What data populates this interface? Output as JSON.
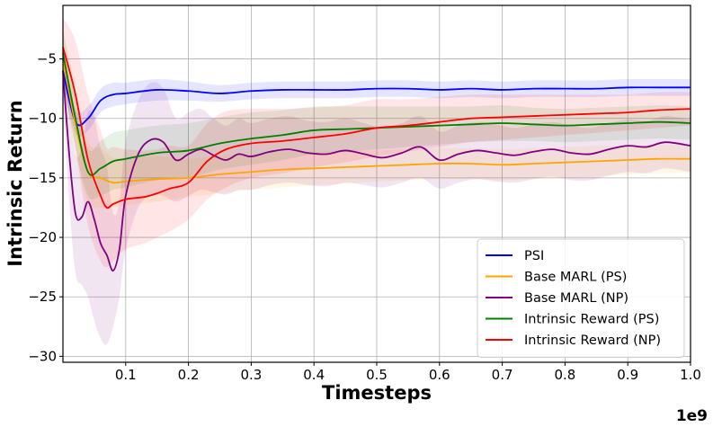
{
  "chart_data": {
    "type": "line",
    "xlabel": "Timesteps",
    "ylabel": "Intrinsic Return",
    "x_offset_label": "1e9",
    "xlim": [
      0.0,
      1.0
    ],
    "ylim": [
      -30.5,
      -0.5
    ],
    "x_ticks": [
      0.1,
      0.2,
      0.3,
      0.4,
      0.5,
      0.6,
      0.7,
      0.8,
      0.9,
      1.0
    ],
    "x_tick_labels": [
      "0.1",
      "0.2",
      "0.3",
      "0.4",
      "0.5",
      "0.6",
      "0.7",
      "0.8",
      "0.9",
      "1.0"
    ],
    "y_ticks": [
      -30,
      -25,
      -20,
      -15,
      -10,
      -5
    ],
    "y_tick_labels": [
      "−30",
      "−25",
      "−20",
      "−15",
      "−10",
      "−5"
    ],
    "grid": true,
    "legend_position": "bottom-right",
    "series": [
      {
        "name": "PSI",
        "color": "#0000ff",
        "x": [
          0.0,
          0.02,
          0.04,
          0.06,
          0.08,
          0.1,
          0.15,
          0.2,
          0.25,
          0.3,
          0.35,
          0.4,
          0.45,
          0.5,
          0.55,
          0.6,
          0.65,
          0.7,
          0.75,
          0.8,
          0.85,
          0.9,
          0.95,
          1.0
        ],
        "y": [
          -6.0,
          -10.3,
          -10.0,
          -8.5,
          -8.0,
          -7.9,
          -7.6,
          -7.7,
          -7.9,
          -7.7,
          -7.6,
          -7.6,
          -7.6,
          -7.5,
          -7.5,
          -7.6,
          -7.5,
          -7.6,
          -7.5,
          -7.5,
          -7.5,
          -7.4,
          -7.4,
          -7.4
        ],
        "lower": [
          -7.0,
          -11.3,
          -11.0,
          -9.5,
          -9.0,
          -8.8,
          -8.5,
          -8.5,
          -8.6,
          -8.4,
          -8.3,
          -8.3,
          -8.3,
          -8.2,
          -8.2,
          -8.3,
          -8.2,
          -8.3,
          -8.2,
          -8.2,
          -8.2,
          -8.1,
          -8.1,
          -8.1
        ],
        "upper": [
          -5.0,
          -9.3,
          -9.0,
          -7.5,
          -7.0,
          -7.0,
          -6.7,
          -6.9,
          -7.2,
          -7.0,
          -6.9,
          -6.9,
          -6.9,
          -6.8,
          -6.8,
          -6.9,
          -6.8,
          -6.9,
          -6.8,
          -6.8,
          -6.8,
          -6.7,
          -6.7,
          -6.7
        ]
      },
      {
        "name": "Base MARL (PS)",
        "color": "#ffa500",
        "x": [
          0.0,
          0.02,
          0.04,
          0.06,
          0.08,
          0.1,
          0.15,
          0.2,
          0.25,
          0.3,
          0.35,
          0.4,
          0.45,
          0.5,
          0.55,
          0.6,
          0.65,
          0.7,
          0.75,
          0.8,
          0.85,
          0.9,
          0.95,
          1.0
        ],
        "y": [
          -5.0,
          -10.5,
          -14.5,
          -15.0,
          -15.4,
          -15.3,
          -15.1,
          -15.0,
          -14.7,
          -14.5,
          -14.3,
          -14.2,
          -14.1,
          -14.0,
          -13.9,
          -13.8,
          -13.8,
          -13.9,
          -13.8,
          -13.7,
          -13.6,
          -13.5,
          -13.4,
          -13.4
        ],
        "lower": [
          -7.0,
          -13.0,
          -17.0,
          -17.5,
          -17.5,
          -17.3,
          -17.0,
          -16.6,
          -16.3,
          -16.0,
          -15.8,
          -15.6,
          -15.5,
          -15.3,
          -15.2,
          -15.1,
          -15.1,
          -15.2,
          -15.1,
          -15.0,
          -14.9,
          -14.7,
          -14.6,
          -14.6
        ],
        "upper": [
          -3.0,
          -8.0,
          -12.0,
          -12.5,
          -13.3,
          -13.3,
          -13.2,
          -13.4,
          -13.1,
          -13.0,
          -12.8,
          -12.8,
          -12.7,
          -12.7,
          -12.6,
          -12.5,
          -12.5,
          -12.6,
          -12.5,
          -12.4,
          -12.3,
          -12.3,
          -12.2,
          -12.2
        ]
      },
      {
        "name": "Base MARL (NP)",
        "color": "#800080",
        "x": [
          0.0,
          0.01,
          0.02,
          0.03,
          0.04,
          0.05,
          0.06,
          0.07,
          0.08,
          0.09,
          0.1,
          0.12,
          0.14,
          0.16,
          0.18,
          0.2,
          0.22,
          0.24,
          0.26,
          0.28,
          0.3,
          0.33,
          0.36,
          0.39,
          0.42,
          0.45,
          0.48,
          0.51,
          0.54,
          0.57,
          0.6,
          0.63,
          0.66,
          0.69,
          0.72,
          0.75,
          0.78,
          0.81,
          0.84,
          0.87,
          0.9,
          0.93,
          0.96,
          1.0
        ],
        "y": [
          -6.0,
          -13.0,
          -18.0,
          -18.3,
          -17.0,
          -18.5,
          -20.5,
          -21.5,
          -22.8,
          -21.0,
          -16.5,
          -13.0,
          -11.8,
          -12.0,
          -13.5,
          -13.0,
          -12.6,
          -13.1,
          -13.5,
          -13.0,
          -13.2,
          -12.8,
          -12.6,
          -12.9,
          -13.0,
          -12.7,
          -13.0,
          -13.3,
          -12.9,
          -12.4,
          -13.5,
          -13.0,
          -12.7,
          -12.9,
          -13.1,
          -12.8,
          -12.6,
          -12.9,
          -13.0,
          -12.6,
          -12.3,
          -12.4,
          -12.0,
          -12.3
        ],
        "lower": [
          -8.0,
          -17.0,
          -23.0,
          -24.0,
          -25.0,
          -27.0,
          -28.5,
          -29.0,
          -27.5,
          -25.0,
          -21.0,
          -17.5,
          -16.5,
          -16.5,
          -17.0,
          -16.5,
          -16.0,
          -16.2,
          -16.4,
          -16.0,
          -16.0,
          -15.6,
          -15.4,
          -15.6,
          -15.7,
          -15.4,
          -15.6,
          -15.8,
          -15.4,
          -15.0,
          -15.9,
          -15.4,
          -15.1,
          -15.3,
          -15.4,
          -15.1,
          -14.9,
          -15.2,
          -15.2,
          -14.8,
          -14.5,
          -14.6,
          -14.2,
          -14.5
        ],
        "upper": [
          -4.0,
          -9.0,
          -13.0,
          -12.5,
          -9.5,
          -10.0,
          -12.5,
          -14.0,
          -18.0,
          -17.0,
          -12.0,
          -8.5,
          -7.0,
          -7.5,
          -10.0,
          -9.5,
          -9.2,
          -10.0,
          -10.6,
          -10.0,
          -10.4,
          -10.0,
          -9.8,
          -10.2,
          -10.3,
          -10.0,
          -10.4,
          -10.8,
          -10.4,
          -9.8,
          -11.1,
          -10.6,
          -10.3,
          -10.5,
          -10.8,
          -10.5,
          -10.3,
          -10.6,
          -10.8,
          -10.4,
          -10.1,
          -10.2,
          -9.8,
          -10.1
        ]
      },
      {
        "name": "Intrinsic Reward (PS)",
        "color": "#008000",
        "x": [
          0.0,
          0.02,
          0.04,
          0.06,
          0.08,
          0.1,
          0.15,
          0.2,
          0.25,
          0.3,
          0.35,
          0.4,
          0.45,
          0.5,
          0.55,
          0.6,
          0.65,
          0.7,
          0.75,
          0.8,
          0.85,
          0.9,
          0.95,
          1.0
        ],
        "y": [
          -4.5,
          -10.0,
          -14.5,
          -14.2,
          -13.6,
          -13.4,
          -12.9,
          -12.7,
          -12.1,
          -11.7,
          -11.4,
          -11.0,
          -10.9,
          -10.8,
          -10.7,
          -10.6,
          -10.5,
          -10.4,
          -10.5,
          -10.6,
          -10.5,
          -10.4,
          -10.3,
          -10.4
        ],
        "lower": [
          -6.5,
          -12.5,
          -16.5,
          -16.5,
          -16.0,
          -15.8,
          -15.2,
          -15.0,
          -14.3,
          -13.9,
          -13.5,
          -13.0,
          -12.8,
          -12.6,
          -12.4,
          -12.2,
          -12.0,
          -11.9,
          -11.9,
          -12.0,
          -11.9,
          -11.8,
          -11.7,
          -11.8
        ],
        "upper": [
          -2.5,
          -7.5,
          -12.5,
          -11.9,
          -11.2,
          -11.0,
          -10.6,
          -10.4,
          -9.9,
          -9.5,
          -9.3,
          -9.0,
          -9.0,
          -9.0,
          -9.0,
          -9.0,
          -9.0,
          -8.9,
          -9.1,
          -9.2,
          -9.1,
          -9.0,
          -8.9,
          -9.0
        ]
      },
      {
        "name": "Intrinsic Reward (NP)",
        "color": "#ff0000",
        "x": [
          0.0,
          0.02,
          0.04,
          0.06,
          0.07,
          0.08,
          0.1,
          0.13,
          0.15,
          0.17,
          0.2,
          0.23,
          0.26,
          0.3,
          0.35,
          0.4,
          0.45,
          0.5,
          0.55,
          0.6,
          0.65,
          0.7,
          0.75,
          0.8,
          0.85,
          0.9,
          0.95,
          1.0
        ],
        "y": [
          -4.0,
          -8.0,
          -13.5,
          -16.5,
          -17.5,
          -17.2,
          -16.8,
          -16.6,
          -16.3,
          -15.9,
          -15.4,
          -13.6,
          -12.6,
          -12.1,
          -11.9,
          -11.6,
          -11.3,
          -10.8,
          -10.6,
          -10.3,
          -10.0,
          -9.9,
          -9.8,
          -9.7,
          -9.6,
          -9.5,
          -9.3,
          -9.2
        ],
        "lower": [
          -7.0,
          -12.5,
          -19.0,
          -22.0,
          -22.5,
          -22.0,
          -21.0,
          -20.5,
          -20.0,
          -19.5,
          -18.5,
          -16.8,
          -15.8,
          -15.0,
          -14.6,
          -14.1,
          -13.7,
          -13.2,
          -12.8,
          -12.4,
          -12.0,
          -11.8,
          -11.6,
          -11.4,
          -11.2,
          -11.0,
          -10.8,
          -10.6
        ],
        "upper": [
          -1.5,
          -3.5,
          -8.0,
          -11.0,
          -12.5,
          -12.4,
          -12.6,
          -12.7,
          -12.6,
          -12.3,
          -12.3,
          -10.4,
          -9.4,
          -9.2,
          -9.2,
          -9.1,
          -8.9,
          -8.4,
          -8.4,
          -8.2,
          -8.0,
          -8.0,
          -8.0,
          -8.0,
          -8.0,
          -8.0,
          -7.8,
          -7.8
        ]
      }
    ]
  }
}
